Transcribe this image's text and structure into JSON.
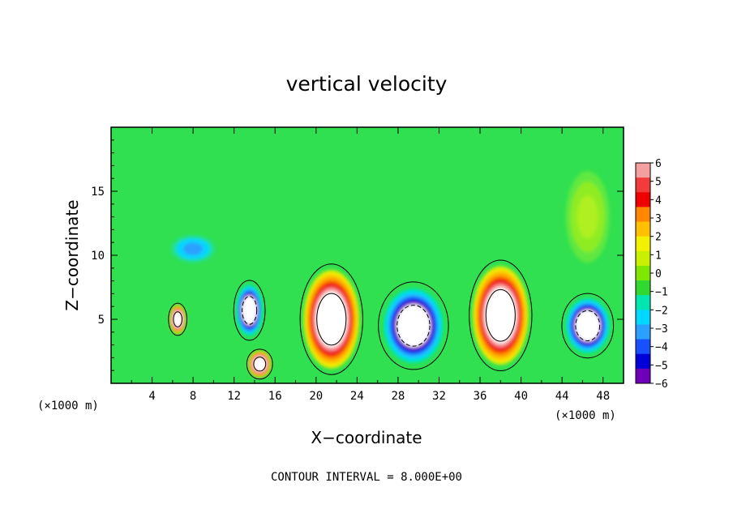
{
  "chart_data": {
    "type": "heatmap",
    "title": "vertical velocity",
    "xlabel": "X−coordinate",
    "ylabel": "Z−coordinate",
    "xlim": [
      0,
      50
    ],
    "ylim": [
      0,
      20
    ],
    "x_ticks": [
      4,
      8,
      12,
      16,
      20,
      24,
      28,
      32,
      36,
      40,
      44,
      48
    ],
    "y_ticks": [
      5,
      10,
      15
    ],
    "x_unit_left": "(×1000 m)",
    "x_unit_right": "(×1000 m)",
    "footer": "CONTOUR INTERVAL = 8.000E+00",
    "colorbar": {
      "levels": [
        6,
        5,
        4,
        3,
        2,
        1,
        0,
        -1,
        -2,
        -3,
        -4,
        -5,
        -6
      ],
      "labels": [
        "6",
        "5",
        "4",
        "3",
        "2",
        "1",
        "0",
        "−1",
        "−2",
        "−3",
        "−4",
        "−5",
        "−6"
      ],
      "colors": [
        "#f5a0a0",
        "#f23c3c",
        "#ef0000",
        "#ff8800",
        "#ffc000",
        "#f2f200",
        "#c8f000",
        "#80e800",
        "#30d830",
        "#00e6b0",
        "#00d8ff",
        "#2aa0ff",
        "#1850ff",
        "#0000d8",
        "#7000b8"
      ]
    },
    "field": {
      "background": "#30e050",
      "features": [
        {
          "kind": "updraft",
          "x": 21.5,
          "z": 5.0,
          "sx": 3.4,
          "sz": 4.8
        },
        {
          "kind": "updraft",
          "x": 38.0,
          "z": 5.3,
          "sx": 3.4,
          "sz": 4.8
        },
        {
          "kind": "updraft",
          "x": 6.5,
          "z": 5.0,
          "sx": 1.0,
          "sz": 1.4
        },
        {
          "kind": "updraft",
          "x": 14.5,
          "z": 1.5,
          "sx": 1.4,
          "sz": 1.3
        },
        {
          "kind": "downdraft",
          "x": 13.5,
          "z": 5.7,
          "sx": 1.7,
          "sz": 2.6
        },
        {
          "kind": "downdraft",
          "x": 29.5,
          "z": 4.5,
          "sx": 3.8,
          "sz": 3.8
        },
        {
          "kind": "downdraft",
          "x": 46.5,
          "z": 4.5,
          "sx": 2.8,
          "sz": 2.8
        },
        {
          "kind": "weak_down",
          "x": 8.0,
          "z": 10.5,
          "sx": 3.0,
          "sz": 1.5
        },
        {
          "kind": "weak_up",
          "x": 46.5,
          "z": 13.0,
          "sx": 3.0,
          "sz": 5.0
        }
      ]
    }
  }
}
